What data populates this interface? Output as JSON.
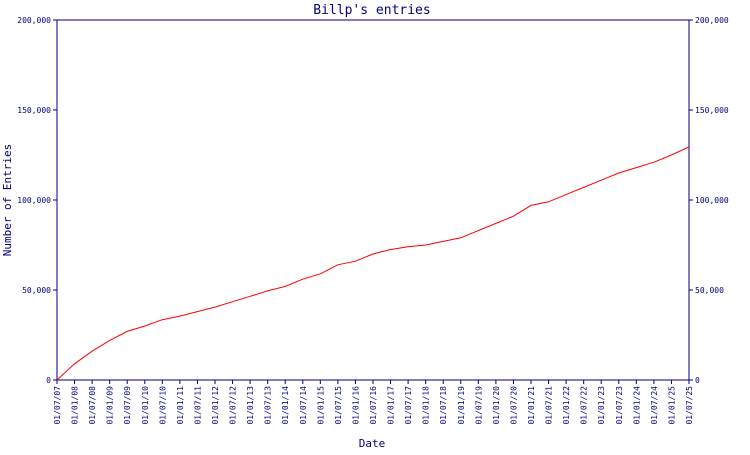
{
  "chart_data": {
    "type": "line",
    "title": "Billp's entries",
    "xlabel": "Date",
    "ylabel": "Number of Entries",
    "ylim": [
      0,
      200000
    ],
    "y_ticks": [
      0,
      50000,
      100000,
      150000,
      200000
    ],
    "y_tick_labels": [
      "0",
      "50,000",
      "100,000",
      "150,000",
      "200,000"
    ],
    "x_tick_labels": [
      "01/07/07",
      "01/01/08",
      "01/07/08",
      "01/01/09",
      "01/07/09",
      "01/01/10",
      "01/07/10",
      "01/01/11",
      "01/07/11",
      "01/01/12",
      "01/07/12",
      "01/01/13",
      "01/07/13",
      "01/01/14",
      "01/07/14",
      "01/01/15",
      "01/07/15",
      "01/01/16",
      "01/07/16",
      "01/01/17",
      "01/07/17",
      "01/01/18",
      "01/07/18",
      "01/01/19",
      "01/07/19",
      "01/01/20",
      "01/07/20",
      "01/01/21",
      "01/07/21",
      "01/01/22",
      "01/07/22",
      "01/01/23",
      "01/07/23",
      "01/01/24",
      "01/07/24",
      "01/01/25",
      "01/07/25"
    ],
    "grid": false,
    "colors": {
      "axis": "#000080",
      "line": "#ff0000",
      "text": "#000080"
    },
    "series": [
      {
        "x": [
          "01/07/07",
          "01/01/08",
          "01/07/08",
          "01/01/09",
          "01/07/09",
          "01/01/10",
          "01/07/10",
          "01/01/11",
          "01/07/11",
          "01/01/12",
          "01/07/12",
          "01/01/13",
          "01/07/13",
          "01/01/14",
          "01/07/14",
          "01/01/15",
          "01/07/15",
          "01/01/16",
          "01/07/16",
          "01/01/17",
          "01/07/17",
          "01/01/18",
          "01/07/18",
          "01/01/19",
          "01/07/19",
          "01/01/20",
          "01/07/20",
          "01/01/21",
          "01/07/21",
          "01/01/22",
          "01/07/22",
          "01/01/23",
          "01/07/23",
          "01/01/24",
          "01/07/24",
          "01/01/25",
          "01/07/25"
        ],
        "values": [
          0,
          9000,
          16000,
          22000,
          27000,
          30000,
          33500,
          35500,
          38000,
          40500,
          43500,
          46500,
          49500,
          52000,
          56000,
          59000,
          64000,
          66000,
          70000,
          72500,
          74000,
          75000,
          77000,
          79000,
          83000,
          87000,
          91000,
          97000,
          99000,
          103000,
          107000,
          111000,
          115000,
          118000,
          121000,
          125000,
          129500
        ]
      }
    ]
  }
}
